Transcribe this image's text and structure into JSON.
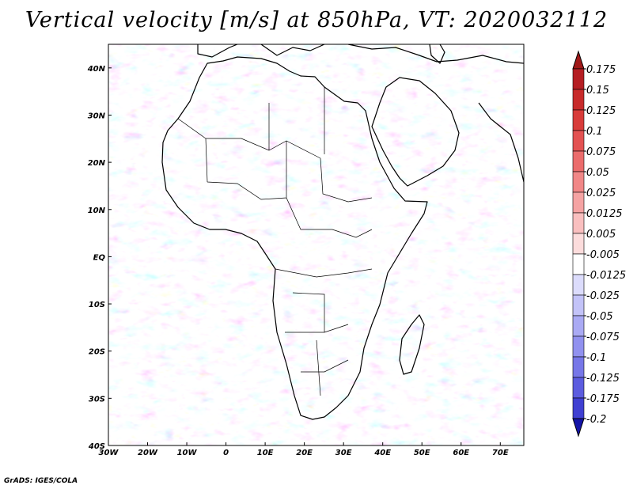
{
  "title": "Vertical velocity [m/s] at 850hPa, VT: 2020032112",
  "footer": "GrADS: IGES/COLA",
  "map": {
    "variable": "Vertical velocity",
    "units": "m/s",
    "level": "850hPa",
    "valid_time": "2020032112",
    "lon_range": [
      -30,
      76
    ],
    "lat_range": [
      -40,
      45
    ],
    "lon_ticks": [
      {
        "value": -30,
        "label": "30W"
      },
      {
        "value": -20,
        "label": "20W"
      },
      {
        "value": -10,
        "label": "10W"
      },
      {
        "value": 0,
        "label": "0"
      },
      {
        "value": 10,
        "label": "10E"
      },
      {
        "value": 20,
        "label": "20E"
      },
      {
        "value": 30,
        "label": "30E"
      },
      {
        "value": 40,
        "label": "40E"
      },
      {
        "value": 50,
        "label": "50E"
      },
      {
        "value": 60,
        "label": "60E"
      },
      {
        "value": 70,
        "label": "70E"
      }
    ],
    "lat_ticks": [
      {
        "value": 40,
        "label": "40N"
      },
      {
        "value": 30,
        "label": "30N"
      },
      {
        "value": 20,
        "label": "20N"
      },
      {
        "value": 10,
        "label": "10N"
      },
      {
        "value": 0,
        "label": "EQ"
      },
      {
        "value": -10,
        "label": "10S"
      },
      {
        "value": -20,
        "label": "20S"
      },
      {
        "value": -30,
        "label": "30S"
      },
      {
        "value": -40,
        "label": "40S"
      }
    ]
  },
  "colorbar": {
    "levels": [
      {
        "label": "0.175",
        "color": "#b51e23"
      },
      {
        "label": "0.15",
        "color": "#c82b2b"
      },
      {
        "label": "0.125",
        "color": "#d83c3a"
      },
      {
        "label": "0.1",
        "color": "#e35252"
      },
      {
        "label": "0.075",
        "color": "#eb6c6c"
      },
      {
        "label": "0.05",
        "color": "#f18787"
      },
      {
        "label": "0.025",
        "color": "#f5a3a3"
      },
      {
        "label": "0.0125",
        "color": "#f9bfbf"
      },
      {
        "label": "0.005",
        "color": "#fcdcdc"
      },
      {
        "label": "-0.005",
        "color": "#ffffff"
      },
      {
        "label": "-0.0125",
        "color": "#dcdcfc"
      },
      {
        "label": "-0.025",
        "color": "#c3c3f8"
      },
      {
        "label": "-0.05",
        "color": "#aaaaf4"
      },
      {
        "label": "-0.075",
        "color": "#9191ef"
      },
      {
        "label": "-0.1",
        "color": "#7777e8"
      },
      {
        "label": "-0.125",
        "color": "#5c5cdf"
      },
      {
        "label": "-0.175",
        "color": "#4040d2"
      },
      {
        "label": "-0.2",
        "color": "#2323bf"
      }
    ],
    "top_color": "#a01818",
    "bottom_color": "#1414a8"
  }
}
